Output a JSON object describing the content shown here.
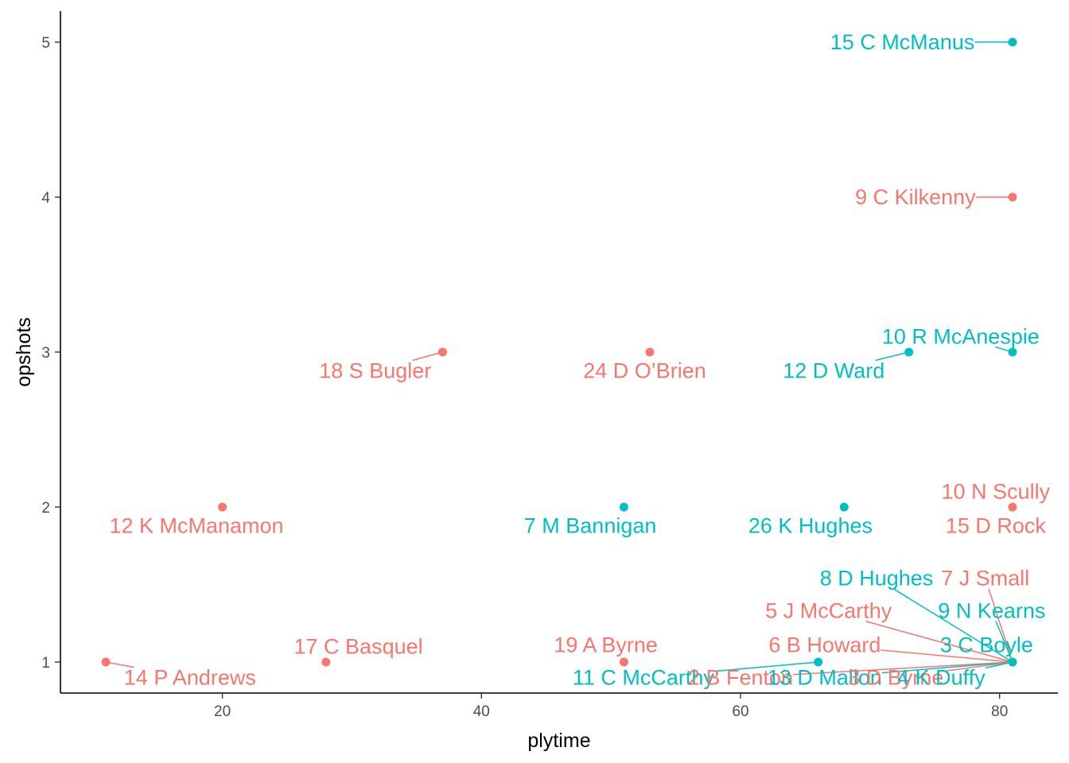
{
  "chart_data": {
    "type": "scatter",
    "title": "",
    "xlabel": "plytime",
    "ylabel": "opshots",
    "xlim": [
      7.5,
      84.5
    ],
    "ylim": [
      0.8,
      5.2
    ],
    "xticks": [
      20,
      40,
      60,
      80
    ],
    "yticks": [
      1,
      2,
      3,
      4,
      5
    ],
    "grid": false,
    "legend": "none",
    "colors": {
      "groupA": "#F8766D",
      "groupB": "#00BFC4",
      "axis": "#000000",
      "tick_text": "#4d4d4d"
    },
    "points": [
      {
        "x": 81,
        "y": 5,
        "group": "groupB"
      },
      {
        "x": 81,
        "y": 4,
        "group": "groupA"
      },
      {
        "x": 37,
        "y": 3,
        "group": "groupA"
      },
      {
        "x": 53,
        "y": 3,
        "group": "groupA"
      },
      {
        "x": 73,
        "y": 3,
        "group": "groupB"
      },
      {
        "x": 81,
        "y": 3,
        "group": "groupB"
      },
      {
        "x": 20,
        "y": 2,
        "group": "groupA"
      },
      {
        "x": 51,
        "y": 2,
        "group": "groupB"
      },
      {
        "x": 68,
        "y": 2,
        "group": "groupB"
      },
      {
        "x": 81,
        "y": 2,
        "group": "groupA"
      },
      {
        "x": 11,
        "y": 1,
        "group": "groupA"
      },
      {
        "x": 28,
        "y": 1,
        "group": "groupA"
      },
      {
        "x": 51,
        "y": 1,
        "group": "groupA"
      },
      {
        "x": 66,
        "y": 1,
        "group": "groupB"
      },
      {
        "x": 81,
        "y": 1,
        "group": "groupA"
      },
      {
        "x": 81,
        "y": 1,
        "group": "groupB"
      }
    ],
    "labels": [
      {
        "text": "15  C McManus",
        "group": "groupB",
        "x": 81,
        "y": 5,
        "lx": 72.5,
        "ly": 5
      },
      {
        "text": "9  C Kilkenny",
        "group": "groupA",
        "x": 81,
        "y": 4,
        "lx": 73.5,
        "ly": 4
      },
      {
        "text": "18  S Bugler",
        "group": "groupA",
        "x": 37,
        "y": 3,
        "lx": 31.8,
        "ly": 2.88
      },
      {
        "text": "24  D O’Brien",
        "group": "groupA",
        "x": 53,
        "y": 3,
        "lx": 52.6,
        "ly": 2.88
      },
      {
        "text": "12  D Ward",
        "group": "groupB",
        "x": 73,
        "y": 3,
        "lx": 67.2,
        "ly": 2.88
      },
      {
        "text": "10  R McAnespie",
        "group": "groupB",
        "x": 81,
        "y": 3,
        "lx": 77.0,
        "ly": 3.1
      },
      {
        "text": "12  K McManamon",
        "group": "groupA",
        "x": 20,
        "y": 2,
        "lx": 18.0,
        "ly": 1.88
      },
      {
        "text": "7  M Bannigan",
        "group": "groupB",
        "x": 51,
        "y": 2,
        "lx": 48.4,
        "ly": 1.88
      },
      {
        "text": "26  K Hughes",
        "group": "groupB",
        "x": 68,
        "y": 2,
        "lx": 65.4,
        "ly": 1.88
      },
      {
        "text": "10  N Scully",
        "group": "groupA",
        "x": 81,
        "y": 2,
        "lx": 79.7,
        "ly": 2.1
      },
      {
        "text": "15  D Rock",
        "group": "groupA",
        "x": 81,
        "y": 2,
        "lx": 79.7,
        "ly": 1.88
      },
      {
        "text": "14  P Andrews",
        "group": "groupA",
        "x": 11,
        "y": 1,
        "lx": 17.5,
        "ly": 0.9
      },
      {
        "text": "17  C Basquel",
        "group": "groupA",
        "x": 28,
        "y": 1,
        "lx": 30.5,
        "ly": 1.1
      },
      {
        "text": "19 A Byrne",
        "group": "groupA",
        "x": 51,
        "y": 1,
        "lx": 49.6,
        "ly": 1.11
      },
      {
        "text": "11  C McCarthy",
        "group": "groupB",
        "x": 66,
        "y": 1,
        "lx": 52.5,
        "ly": 0.9
      },
      {
        "text": "8  D Hughes",
        "group": "groupB",
        "x": 81,
        "y": 1,
        "lx": 70.5,
        "ly": 1.54
      },
      {
        "text": "7  J Small",
        "group": "groupA",
        "x": 81,
        "y": 1,
        "lx": 78.9,
        "ly": 1.54
      },
      {
        "text": "5  J McCarthy",
        "group": "groupA",
        "x": 81,
        "y": 1,
        "lx": 66.8,
        "ly": 1.33
      },
      {
        "text": "9  N Kearns",
        "group": "groupB",
        "x": 81,
        "y": 1,
        "lx": 79.4,
        "ly": 1.33
      },
      {
        "text": "6  B Howard",
        "group": "groupA",
        "x": 81,
        "y": 1,
        "lx": 66.5,
        "ly": 1.11
      },
      {
        "text": "3  C Boyle",
        "group": "groupB",
        "x": 81,
        "y": 1,
        "lx": 79.0,
        "ly": 1.11
      },
      {
        "text": "2  B Fenton",
        "group": "groupA",
        "x": 81,
        "y": 1,
        "lx": 60.0,
        "ly": 0.9
      },
      {
        "text": "13  D Mallon",
        "group": "groupB",
        "x": 81,
        "y": 1,
        "lx": 66.5,
        "ly": 0.9
      },
      {
        "text": "3  D Byrne",
        "group": "groupA",
        "x": 81,
        "y": 1,
        "lx": 72.0,
        "ly": 0.9
      },
      {
        "text": "4  K Duffy",
        "group": "groupB",
        "x": 81,
        "y": 1,
        "lx": 75.5,
        "ly": 0.9
      }
    ]
  }
}
